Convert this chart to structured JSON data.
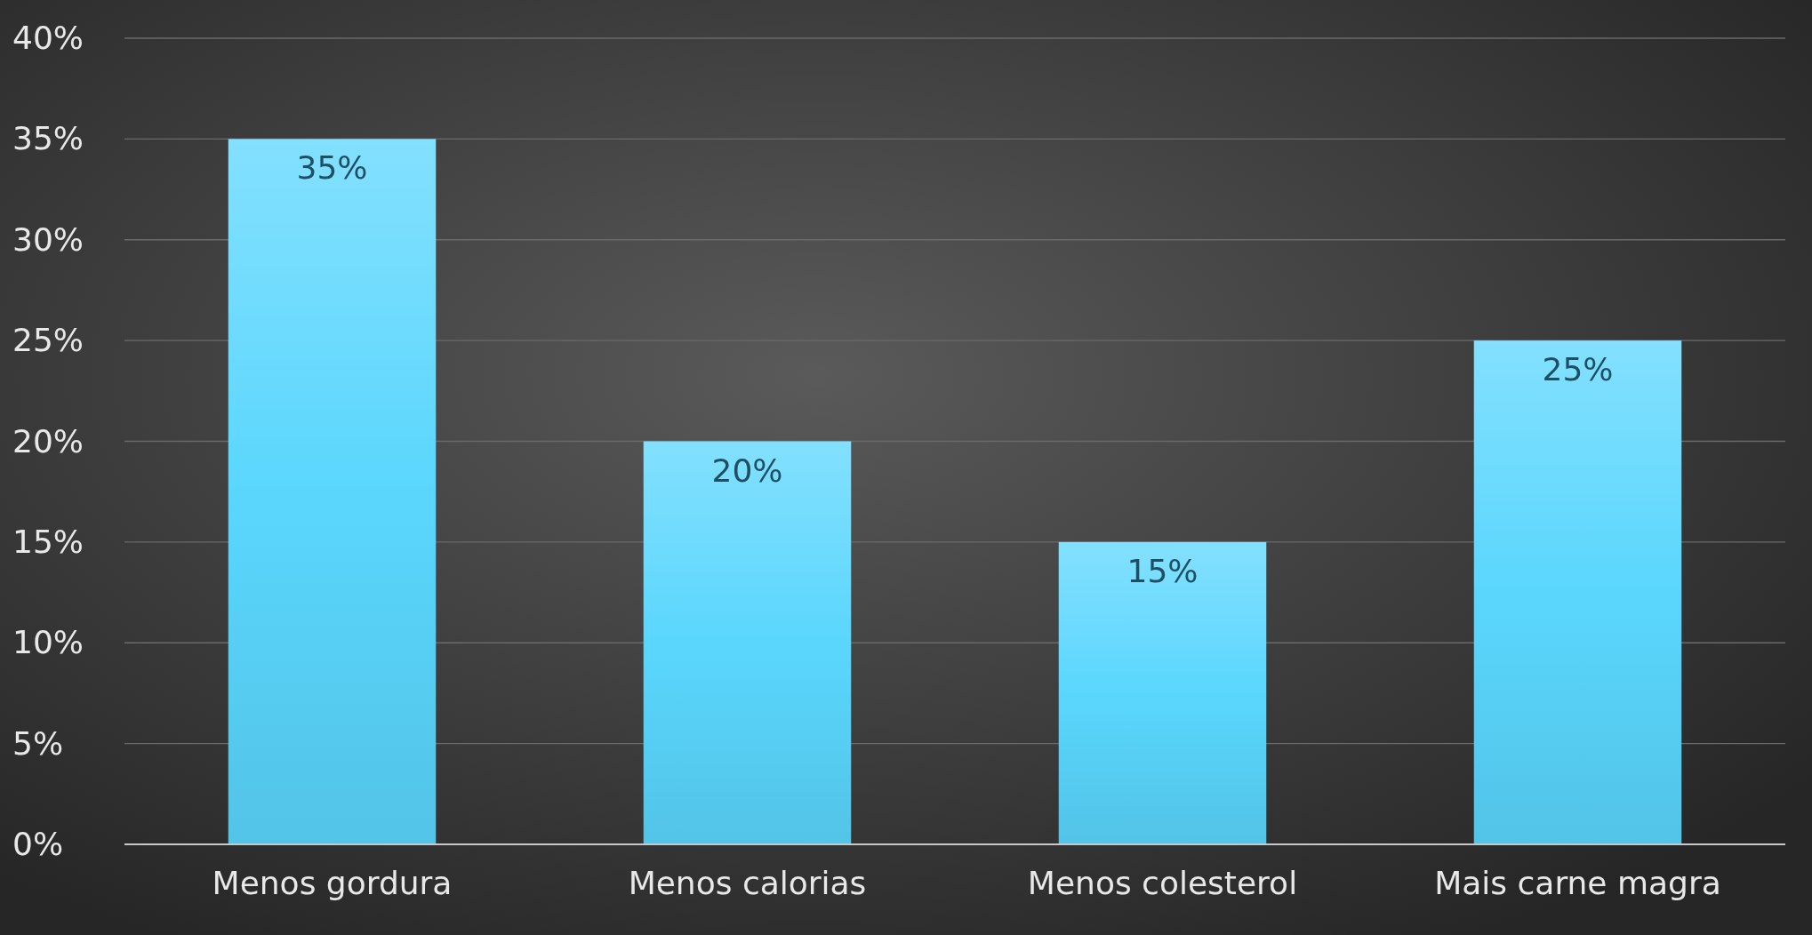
{
  "chart_data": {
    "type": "bar",
    "categories": [
      "Menos gordura",
      "Menos calorias",
      "Menos colesterol",
      "Mais carne magra"
    ],
    "values": [
      35,
      20,
      15,
      25
    ],
    "value_labels": [
      "35%",
      "20%",
      "15%",
      "25%"
    ],
    "color": "#5ad6fd",
    "ylim": [
      0,
      40
    ],
    "yticks": [
      {
        "value": 0,
        "label": "0%"
      },
      {
        "value": 5,
        "label": "5%"
      },
      {
        "value": 10,
        "label": "10%"
      },
      {
        "value": 15,
        "label": "15%"
      },
      {
        "value": 20,
        "label": "20%"
      },
      {
        "value": 25,
        "label": "25%"
      },
      {
        "value": 30,
        "label": "30%"
      },
      {
        "value": 35,
        "label": "35%"
      },
      {
        "value": 40,
        "label": "40%"
      }
    ],
    "grid": "y"
  }
}
